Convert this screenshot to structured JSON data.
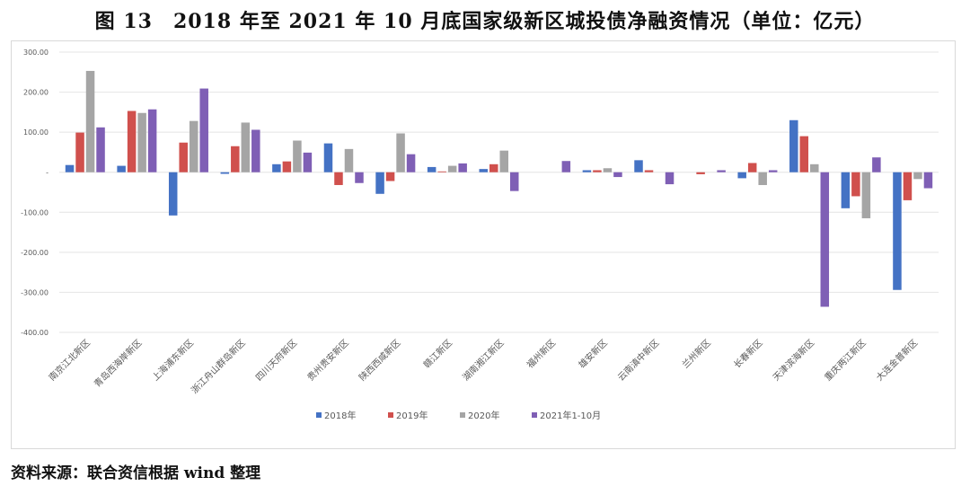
{
  "title": "图 13　2018 年至 2021 年 10 月底国家级新区城投债净融资情况（单位：亿元）",
  "source": "资料来源：联合资信根据 wind 整理",
  "chart_data": {
    "type": "bar",
    "title": "",
    "ylim": [
      -400,
      300
    ],
    "yticks": [
      300,
      200,
      100,
      0,
      -100,
      -200,
      -300,
      -400
    ],
    "ytick_labels": [
      "300.00",
      "200.00",
      "100.00",
      "-",
      "-100.00",
      "-200.00",
      "-300.00",
      "-400.00"
    ],
    "grid": true,
    "legend": "bottom",
    "categories": [
      "南京江北新区",
      "青岛西海岸新区",
      "上海浦东新区",
      "浙江舟山群岛新区",
      "四川天府新区",
      "贵州贵安新区",
      "陕西西咸新区",
      "赣江新区",
      "湖南湘江新区",
      "福州新区",
      "雄安新区",
      "云南滇中新区",
      "兰州新区",
      "长春新区",
      "天津滨海新区",
      "重庆两江新区",
      "大连金普新区"
    ],
    "series": [
      {
        "name": "2018年",
        "color": "#4472C4",
        "values": [
          18,
          16,
          -108,
          -4,
          20,
          72,
          -54,
          13,
          8,
          0,
          5,
          30,
          0,
          -15,
          130,
          -90,
          -294
        ]
      },
      {
        "name": "2019年",
        "color": "#D0504D",
        "values": [
          99,
          153,
          74,
          65,
          27,
          -32,
          -22,
          2,
          20,
          0,
          5,
          5,
          -5,
          23,
          90,
          -60,
          -70
        ]
      },
      {
        "name": "2020年",
        "color": "#A5A5A5",
        "values": [
          253,
          148,
          128,
          124,
          79,
          58,
          97,
          16,
          54,
          0,
          10,
          0,
          0,
          -32,
          20,
          -115,
          -17
        ]
      },
      {
        "name": "2021年1-10月",
        "color": "#7F5FB5",
        "values": [
          112,
          157,
          209,
          106,
          49,
          -27,
          45,
          22,
          -47,
          28,
          -12,
          -30,
          5,
          5,
          -336,
          37,
          -40
        ]
      }
    ]
  }
}
